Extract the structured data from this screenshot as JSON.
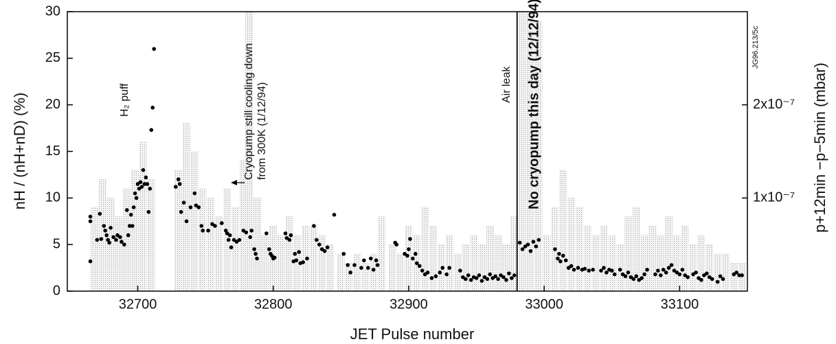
{
  "chart_data": {
    "type": "scatter",
    "xlabel": "JET Pulse number",
    "ylabel": "nH / (nH+nD) (%)",
    "y2label": "p+12min −p−5min (mbar)",
    "xlim": [
      32648,
      33150
    ],
    "ylim": [
      0,
      30
    ],
    "y2lim": [
      0,
      3e-07
    ],
    "xticks": [
      32700,
      32800,
      32900,
      33000,
      33100
    ],
    "yticks": [
      0,
      5,
      10,
      15,
      20,
      25,
      30
    ],
    "y2ticks": [
      {
        "value": 1e-07,
        "label": "1x10⁻⁷"
      },
      {
        "value": 2e-07,
        "label": "2x10⁻⁷"
      }
    ],
    "reference_line": 32980,
    "annotations": [
      "H₂ puff",
      "Cryopump still cooling down",
      "from 300K (1/12/94)",
      "Air leak",
      "No cryopump this day (12/12/94)",
      "JG96.213/5c"
    ],
    "series": [
      {
        "type": "bar",
        "axis": "y2",
        "color": "#cfcfcf",
        "x": [
          32668,
          32674,
          32680,
          32686,
          32692,
          32698,
          32704,
          32710,
          32730,
          32736,
          32742,
          32748,
          32754,
          32760,
          32766,
          32772,
          32778,
          32782,
          32788,
          32794,
          32800,
          32806,
          32812,
          32818,
          32824,
          32830,
          32836,
          32842,
          32850,
          32856,
          32862,
          32868,
          32874,
          32880,
          32888,
          32894,
          32900,
          32906,
          32912,
          32918,
          32924,
          32930,
          32936,
          32942,
          32948,
          32954,
          32960,
          32966,
          32972,
          32978,
          32984,
          32990,
          32996,
          33002,
          33008,
          33014,
          33020,
          33026,
          33032,
          33038,
          33044,
          33050,
          33056,
          33062,
          33068,
          33074,
          33080,
          33086,
          33092,
          33098,
          33104,
          33110,
          33116,
          33122,
          33128,
          33134,
          33140,
          33146
        ],
        "values": [
          9e-08,
          1.2e-07,
          1e-07,
          8e-08,
          1.1e-07,
          1.3e-07,
          1.6e-07,
          1.2e-07,
          1.3e-07,
          1.8e-07,
          1.5e-07,
          1.1e-07,
          1e-07,
          8e-08,
          1.1e-07,
          9e-08,
          1.4e-07,
          3e-07,
          1e-07,
          6e-08,
          7e-08,
          6e-08,
          8e-08,
          6e-08,
          7e-08,
          7e-08,
          6e-08,
          5e-08,
          4e-08,
          3e-08,
          4e-08,
          3e-08,
          4e-08,
          8e-08,
          5e-08,
          4e-08,
          7e-08,
          6e-08,
          9e-08,
          7e-08,
          5e-08,
          6e-08,
          4e-08,
          5e-08,
          6e-08,
          5e-08,
          7e-08,
          6e-08,
          5e-08,
          8e-08,
          3e-07,
          3e-07,
          2.9e-07,
          6e-08,
          9e-08,
          1.3e-07,
          1e-07,
          9e-08,
          7e-08,
          6e-08,
          7e-08,
          6e-08,
          5e-08,
          8e-08,
          9e-08,
          6e-08,
          7e-08,
          6e-08,
          8e-08,
          6e-08,
          7e-08,
          5e-08,
          6e-08,
          5e-08,
          4e-08,
          4e-08,
          3e-08,
          3e-08
        ]
      },
      {
        "type": "scatter",
        "color": "#000000",
        "x": [
          32665,
          32665,
          32665,
          32670,
          32672,
          32673,
          32675,
          32676,
          32677,
          32678,
          32679,
          32680,
          32682,
          32684,
          32685,
          32687,
          32688,
          32690,
          32692,
          32693,
          32694,
          32695,
          32696,
          32697,
          32698,
          32699,
          32700,
          32701,
          32702,
          32703,
          32704,
          32705,
          32706,
          32707,
          32708,
          32709,
          32710,
          32711,
          32712,
          32728,
          32730,
          32731,
          32732,
          32734,
          32736,
          32739,
          32742,
          32743,
          32745,
          32747,
          32748,
          32752,
          32755,
          32757,
          32762,
          32765,
          32766,
          32767,
          32768,
          32769,
          32771,
          32773,
          32775,
          32778,
          32780,
          32783,
          32784,
          32786,
          32787,
          32788,
          32795,
          32797,
          32798,
          32799,
          32800,
          32801,
          32809,
          32810,
          32812,
          32813,
          32815,
          32816,
          32817,
          32819,
          32820,
          32822,
          32825,
          32830,
          32832,
          32834,
          32836,
          32838,
          32840,
          32845,
          32852,
          32855,
          32857,
          32860,
          32865,
          32867,
          32870,
          32872,
          32874,
          32876,
          32877,
          32890,
          32891,
          32897,
          32899,
          32900,
          32901,
          32903,
          32905,
          32906,
          32908,
          32910,
          32912,
          32914,
          32917,
          32920,
          32923,
          32925,
          32928,
          32930,
          32938,
          32940,
          32942,
          32944,
          32946,
          32948,
          32950,
          32952,
          32954,
          32956,
          32958,
          32960,
          32962,
          32964,
          32966,
          32968,
          32970,
          32972,
          32974,
          32976,
          32978,
          32982,
          32984,
          32986,
          32988,
          32990,
          32992,
          32994,
          32996,
          33008,
          33010,
          33011,
          33012,
          33014,
          33016,
          33018,
          33020,
          33022,
          33025,
          33028,
          33030,
          33033,
          33036,
          33042,
          33044,
          33046,
          33048,
          33050,
          33052,
          33056,
          33058,
          33060,
          33062,
          33064,
          33066,
          33068,
          33070,
          33072,
          33074,
          33076,
          33082,
          33084,
          33086,
          33088,
          33090,
          33092,
          33094,
          33096,
          33098,
          33100,
          33102,
          33104,
          33106,
          33110,
          33112,
          33114,
          33116,
          33118,
          33120,
          33122,
          33124,
          33128,
          33130,
          33132,
          33140,
          33142,
          33144,
          33146
        ],
        "values": [
          8.0,
          7.5,
          3.2,
          5.5,
          8.3,
          5.6,
          7.0,
          6.5,
          6.0,
          5.5,
          5.2,
          6.8,
          5.8,
          5.5,
          6.0,
          5.8,
          5.3,
          5.0,
          8.7,
          6.0,
          7.0,
          8.2,
          7.0,
          9.0,
          10.5,
          10.0,
          11.5,
          11.0,
          11.7,
          11.2,
          13.0,
          11.5,
          12.2,
          11.5,
          8.5,
          11.0,
          17.3,
          19.7,
          26.0,
          11.2,
          12.0,
          11.5,
          8.5,
          9.5,
          7.5,
          9.0,
          10.5,
          9.2,
          9.0,
          7.0,
          6.5,
          6.5,
          7.2,
          7.0,
          7.3,
          6.5,
          6.2,
          5.5,
          6.0,
          4.7,
          5.5,
          5.3,
          5.5,
          6.5,
          6.3,
          5.8,
          6.5,
          4.5,
          4.0,
          3.5,
          6.2,
          4.5,
          4.0,
          3.8,
          3.5,
          3.6,
          6.2,
          5.7,
          5.5,
          6.0,
          3.2,
          4.0,
          3.3,
          4.2,
          3.0,
          3.1,
          3.5,
          7.0,
          5.5,
          5.0,
          4.5,
          4.3,
          4.7,
          8.2,
          4.0,
          2.8,
          2.0,
          2.8,
          2.5,
          3.3,
          2.5,
          3.5,
          2.3,
          3.3,
          2.8,
          5.2,
          5.0,
          4.0,
          3.8,
          4.5,
          5.6,
          3.5,
          4.0,
          3.0,
          2.7,
          2.2,
          1.8,
          2.0,
          1.4,
          1.6,
          2.0,
          2.5,
          1.8,
          2.5,
          2.2,
          1.5,
          1.3,
          1.7,
          1.2,
          1.5,
          1.4,
          1.7,
          1.1,
          1.5,
          1.3,
          1.8,
          1.4,
          1.6,
          1.3,
          1.7,
          1.5,
          1.2,
          1.9,
          1.4,
          1.7,
          5.2,
          4.5,
          4.8,
          5.0,
          4.3,
          5.3,
          4.8,
          5.5,
          4.5,
          3.5,
          4.0,
          3.2,
          3.8,
          3.3,
          2.5,
          2.7,
          2.3,
          2.5,
          2.3,
          2.4,
          2.2,
          2.3,
          2.2,
          2.5,
          2.0,
          2.3,
          2.2,
          1.8,
          2.3,
          1.8,
          1.6,
          2.0,
          1.5,
          1.3,
          1.6,
          1.2,
          1.4,
          1.8,
          2.3,
          1.8,
          2.2,
          1.7,
          2.3,
          2.0,
          2.5,
          2.8,
          2.2,
          2.0,
          1.8,
          2.3,
          1.7,
          1.5,
          1.8,
          2.0,
          1.4,
          1.2,
          1.7,
          1.9,
          1.5,
          1.3,
          1.0,
          1.6,
          1.3,
          1.8,
          2.0,
          1.7,
          1.7
        ]
      }
    ]
  }
}
